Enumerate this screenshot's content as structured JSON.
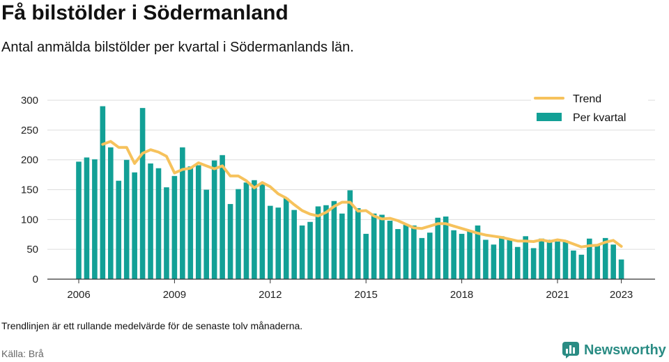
{
  "header": {
    "title": "Få bilstölder i Södermanland",
    "subtitle": "Antal anmälda bilstölder per kvartal i Södermanlands län."
  },
  "footer": {
    "note": "Trendlinjen är ett rullande medelvärde för de senaste tolv månaderna.",
    "source": "Källa: Brå",
    "brand": "Newsworthy"
  },
  "colors": {
    "bar": "#12a096",
    "trend": "#f6c25c",
    "grid": "#dddddd",
    "brand": "#2a8c84"
  },
  "chart_data": {
    "type": "bar",
    "title": "Få bilstölder i Södermanland",
    "subtitle": "Antal anmälda bilstölder per kvartal i Södermanlands län.",
    "grid": true,
    "legend": "top-right",
    "ylim": [
      0,
      300
    ],
    "yticks": [
      "0",
      "50",
      "100",
      "150",
      "200",
      "250",
      "300"
    ],
    "xticks": [
      "2006",
      "2009",
      "2012",
      "2015",
      "2018",
      "2021",
      "2023"
    ],
    "x": [
      "2006Q1",
      "2006Q2",
      "2006Q3",
      "2006Q4",
      "2007Q1",
      "2007Q2",
      "2007Q3",
      "2007Q4",
      "2008Q1",
      "2008Q2",
      "2008Q3",
      "2008Q4",
      "2009Q1",
      "2009Q2",
      "2009Q3",
      "2009Q4",
      "2010Q1",
      "2010Q2",
      "2010Q3",
      "2010Q4",
      "2011Q1",
      "2011Q2",
      "2011Q3",
      "2011Q4",
      "2012Q1",
      "2012Q2",
      "2012Q3",
      "2012Q4",
      "2013Q1",
      "2013Q2",
      "2013Q3",
      "2013Q4",
      "2014Q1",
      "2014Q2",
      "2014Q3",
      "2014Q4",
      "2015Q1",
      "2015Q2",
      "2015Q3",
      "2015Q4",
      "2016Q1",
      "2016Q2",
      "2016Q3",
      "2016Q4",
      "2017Q1",
      "2017Q2",
      "2017Q3",
      "2017Q4",
      "2018Q1",
      "2018Q2",
      "2018Q3",
      "2018Q4",
      "2019Q1",
      "2019Q2",
      "2019Q3",
      "2019Q4",
      "2020Q1",
      "2020Q2",
      "2020Q3",
      "2020Q4",
      "2021Q1",
      "2021Q2",
      "2021Q3",
      "2021Q4",
      "2022Q1",
      "2022Q2",
      "2022Q3",
      "2022Q4",
      "2023Q1"
    ],
    "series": [
      {
        "name": "Per kvartal",
        "type": "bar",
        "values": [
          197,
          204,
          201,
          290,
          221,
          165,
          200,
          179,
          287,
          194,
          186,
          154,
          173,
          221,
          189,
          191,
          150,
          199,
          208,
          126,
          151,
          162,
          166,
          159,
          123,
          120,
          136,
          116,
          90,
          96,
          122,
          124,
          131,
          110,
          149,
          119,
          76,
          110,
          108,
          98,
          84,
          91,
          90,
          69,
          78,
          103,
          105,
          82,
          76,
          82,
          90,
          66,
          58,
          72,
          66,
          54,
          72,
          52,
          68,
          66,
          63,
          65,
          48,
          41,
          68,
          57,
          69,
          58,
          33
        ]
      },
      {
        "name": "Trend",
        "type": "line",
        "values": [
          null,
          null,
          null,
          226,
          231,
          221,
          221,
          194,
          211,
          217,
          213,
          206,
          178,
          184,
          186,
          195,
          190,
          185,
          190,
          173,
          173,
          165,
          153,
          162,
          155,
          143,
          136,
          125,
          115,
          109,
          106,
          112,
          122,
          129,
          129,
          114,
          115,
          106,
          101,
          102,
          98,
          92,
          86,
          85,
          89,
          93,
          93,
          89,
          85,
          81,
          77,
          74,
          72,
          70,
          67,
          64,
          64,
          63,
          66,
          63,
          66,
          64,
          59,
          54,
          56,
          57,
          62,
          65,
          55
        ]
      }
    ]
  }
}
